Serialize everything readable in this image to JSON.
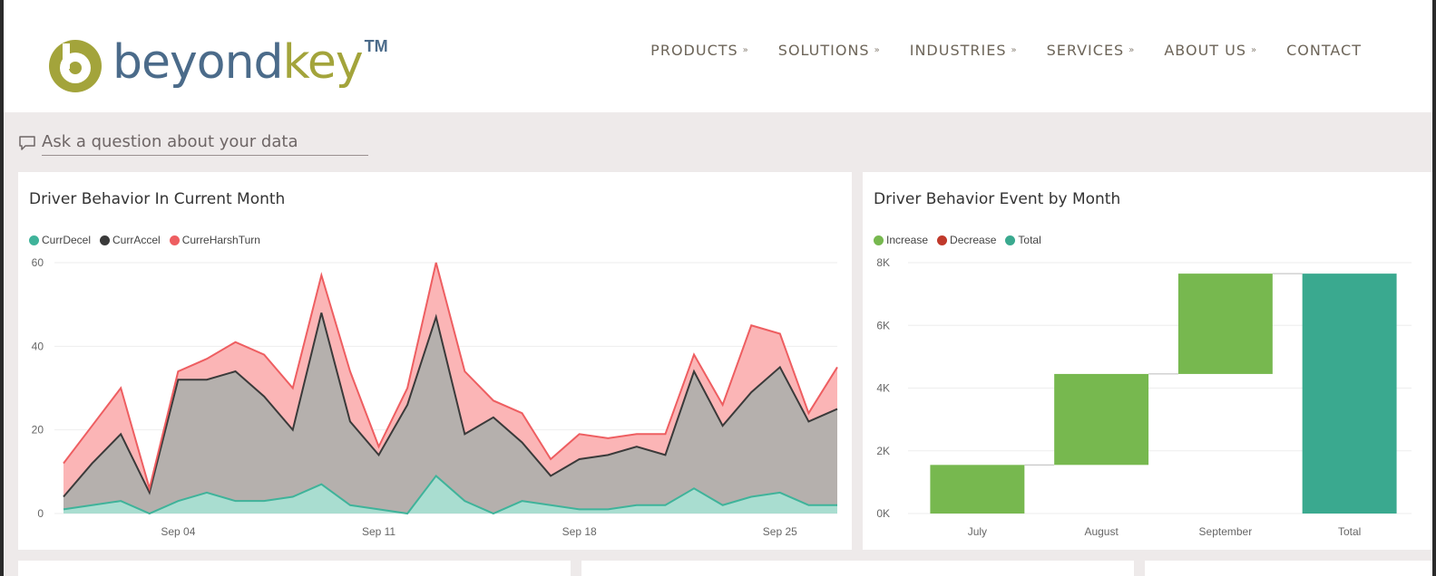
{
  "brand": {
    "name_part1": "beyond",
    "name_part2": "key",
    "trademark": "TM",
    "colors": {
      "blue": "#4b6b8a",
      "olive": "#a3a43b"
    }
  },
  "nav": {
    "items": [
      {
        "label": "PRODUCTS",
        "has_dropdown": true,
        "icon": "double-chevron-down-icon"
      },
      {
        "label": "SOLUTIONS",
        "has_dropdown": true,
        "icon": "double-chevron-down-icon"
      },
      {
        "label": "INDUSTRIES",
        "has_dropdown": true,
        "icon": "double-chevron-down-icon"
      },
      {
        "label": "SERVICES",
        "has_dropdown": true,
        "icon": "double-chevron-down-icon"
      },
      {
        "label": "ABOUT US",
        "has_dropdown": true,
        "icon": "double-chevron-down-icon"
      },
      {
        "label": "CONTACT",
        "has_dropdown": false
      }
    ]
  },
  "qa": {
    "placeholder": "Ask a question about your data",
    "icon": "chat-bubble-icon"
  },
  "chart_data": [
    {
      "type": "area",
      "title": "Driver Behavior In Current Month",
      "xlabel": "",
      "ylabel": "",
      "ylim": [
        0,
        60
      ],
      "yticks": [
        "0",
        "20",
        "40",
        "60"
      ],
      "x_tick_labels": [
        {
          "label": "Sep 04",
          "index": 4
        },
        {
          "label": "Sep 11",
          "index": 11
        },
        {
          "label": "Sep 18",
          "index": 18
        },
        {
          "label": "Sep 25",
          "index": 25
        }
      ],
      "stacked": true,
      "grid": true,
      "legend_position": "top-left",
      "series": [
        {
          "name": "CurrDecel",
          "color": "#3fb39a",
          "values": [
            1,
            2,
            3,
            0,
            3,
            5,
            3,
            3,
            4,
            7,
            2,
            1,
            0,
            9,
            3,
            0,
            3,
            2,
            1,
            1,
            2,
            2,
            6,
            2,
            4,
            5,
            2,
            2
          ]
        },
        {
          "name": "CurrAccel",
          "color": "#3a3a3a",
          "values": [
            4,
            12,
            19,
            5,
            32,
            32,
            34,
            28,
            20,
            48,
            22,
            14,
            26,
            47,
            19,
            23,
            17,
            9,
            13,
            14,
            16,
            14,
            34,
            21,
            29,
            35,
            22,
            25
          ]
        },
        {
          "name": "CurreHarshTurn",
          "color": "#ee5e61",
          "values": [
            12,
            21,
            30,
            6,
            34,
            37,
            41,
            38,
            30,
            57,
            34,
            16,
            30,
            60,
            34,
            27,
            24,
            13,
            19,
            18,
            19,
            19,
            38,
            26,
            45,
            43,
            24,
            35
          ]
        }
      ]
    },
    {
      "type": "bar",
      "subtype": "waterfall",
      "title": "Driver Behavior Event by Month",
      "xlabel": "",
      "ylabel": "",
      "ylim": [
        0,
        8000
      ],
      "yticks": [
        "0K",
        "2K",
        "4K",
        "6K",
        "8K"
      ],
      "grid": true,
      "legend_position": "top-left",
      "legend": [
        {
          "name": "Increase",
          "color": "#77b84f"
        },
        {
          "name": "Decrease",
          "color": "#c0392b"
        },
        {
          "name": "Total",
          "color": "#3aa98f"
        }
      ],
      "categories": [
        "July",
        "August",
        "September",
        "Total"
      ],
      "values": [
        1550,
        2900,
        3200,
        7650
      ],
      "kinds": [
        "increase",
        "increase",
        "increase",
        "total"
      ]
    }
  ]
}
